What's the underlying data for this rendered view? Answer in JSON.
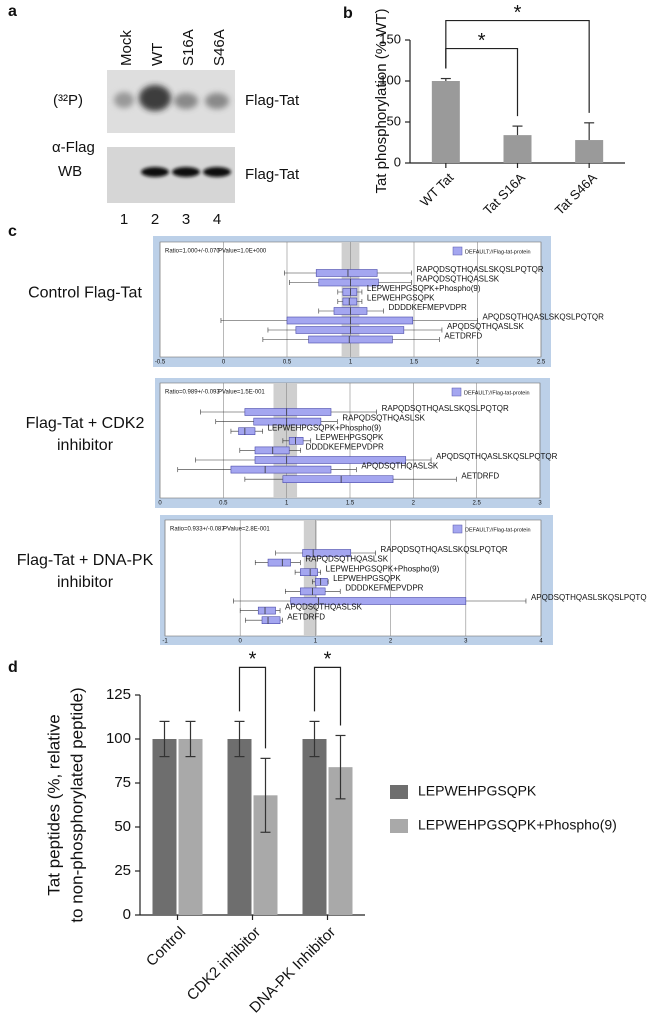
{
  "panel_labels": [
    "a",
    "b",
    "c",
    "d"
  ],
  "blot": {
    "lanes": [
      "Mock",
      "WT",
      "S16A",
      "S46A"
    ],
    "lane_numbers": [
      "1",
      "2",
      "3",
      "4"
    ],
    "rows": [
      {
        "label": [
          "(³²P)"
        ],
        "band_label": "Flag-Tat"
      },
      {
        "label": [
          "α-Flag",
          "WB"
        ],
        "band_label": "Flag-Tat"
      }
    ]
  },
  "chart_data": [
    {
      "type": "bar",
      "categories": [
        "WT Tat",
        "Tat S16A",
        "Tat S46A"
      ],
      "values": [
        100,
        34,
        28
      ],
      "errors": [
        3,
        11,
        21
      ],
      "error_bars": "upper",
      "color": "#9a9a9a",
      "ylabel": "Tat phosphorylation (% WT)",
      "ylim": [
        0,
        150
      ],
      "yticks": [
        0,
        50,
        100,
        150
      ],
      "brackets": [
        {
          "text": "*",
          "between": [
            0,
            2
          ]
        },
        {
          "text": "*",
          "between": [
            0,
            1
          ]
        }
      ]
    },
    {
      "type": "box",
      "title": [
        "Control Flag-Tat"
      ],
      "ratio_label": "Ratio=1.000+/-0.070",
      "ratio": 1.0,
      "ratio_error": 0.07,
      "pvalue_label": "PValue=1.0E+000",
      "legend": "DEFAULT://Flag-tat-protein",
      "color": "#a4a6f0",
      "categories": [
        "RAPQDSQTHQASLSKQSLPQTQR",
        "RAPQDSQTHQASLSK",
        "LEPWEHPGSQPK+Phospho(9)",
        "LEPWEHPGSQPK",
        "DDDDKEFMEPVDPR",
        "APQDSQTHQASLSKQSLPQTQR",
        "APQDSQTHQASLSK",
        "AETDRFD"
      ],
      "boxes": [
        {
          "low": 0.48,
          "q1": 0.73,
          "median": 0.98,
          "q3": 1.21,
          "high": 1.48
        },
        {
          "low": 0.52,
          "q1": 0.75,
          "median": 1.0,
          "q3": 1.22,
          "high": 1.48
        },
        {
          "low": 0.9,
          "q1": 0.94,
          "median": 1.0,
          "q3": 1.05,
          "high": 1.09
        },
        {
          "low": 0.9,
          "q1": 0.94,
          "median": 0.99,
          "q3": 1.05,
          "high": 1.09
        },
        {
          "low": 0.75,
          "q1": 0.87,
          "median": 1.0,
          "q3": 1.13,
          "high": 1.26
        },
        {
          "low": -0.02,
          "q1": 0.5,
          "median": 1.0,
          "q3": 1.49,
          "high": 2.0
        },
        {
          "low": 0.35,
          "q1": 0.57,
          "median": 1.0,
          "q3": 1.42,
          "high": 1.72
        },
        {
          "low": 0.31,
          "q1": 0.67,
          "median": 0.99,
          "q3": 1.33,
          "high": 1.7
        }
      ],
      "xlim": [
        -0.5,
        2.5
      ],
      "xticks": [
        -0.5,
        0,
        0.5,
        1,
        1.5,
        2,
        2.5
      ]
    },
    {
      "type": "box",
      "title": [
        "Flag-Tat + CDK2",
        "inhibitor"
      ],
      "ratio_label": "Ratio=0.989+/-0.093",
      "ratio": 0.989,
      "ratio_error": 0.093,
      "pvalue_label": "PValue=1.5E-001",
      "legend": "DEFAULT://Flag-tat-protein",
      "color": "#a4a6f0",
      "categories": [
        "RAPQDSQTHQASLSKQSLPQTQR",
        "RAPQDSQTHQASLSK",
        "LEPWEHPGSQPK+Phospho(9)",
        "LEPWEHPGSQPK",
        "DDDDKEFMEPVDPR",
        "APQDSQTHQASLSKQSLPQTQR",
        "APQDSQTHQASLSK",
        "AETDRFD"
      ],
      "boxes": [
        {
          "low": 0.32,
          "q1": 0.67,
          "median": 1.0,
          "q3": 1.35,
          "high": 1.71
        },
        {
          "low": 0.44,
          "q1": 0.74,
          "median": 1.0,
          "q3": 1.27,
          "high": 1.4
        },
        {
          "low": 0.56,
          "q1": 0.62,
          "median": 0.67,
          "q3": 0.75,
          "high": 0.81
        },
        {
          "low": 0.97,
          "q1": 1.02,
          "median": 1.07,
          "q3": 1.13,
          "high": 1.19
        },
        {
          "low": 0.63,
          "q1": 0.75,
          "median": 0.89,
          "q3": 1.02,
          "high": 1.11
        },
        {
          "low": 0.28,
          "q1": 0.75,
          "median": 1.0,
          "q3": 1.94,
          "high": 2.14
        },
        {
          "low": 0.14,
          "q1": 0.56,
          "median": 0.83,
          "q3": 1.35,
          "high": 1.55
        },
        {
          "low": 0.67,
          "q1": 0.97,
          "median": 1.43,
          "q3": 1.84,
          "high": 2.34
        }
      ],
      "xlim": [
        0,
        3
      ],
      "xticks": [
        0,
        0.5,
        1,
        1.5,
        2,
        2.5,
        3
      ]
    },
    {
      "type": "box",
      "title": [
        "Flag-Tat + DNA-PK",
        "inhibitor"
      ],
      "ratio_label": "Ratio=0.933+/-0.087",
      "ratio": 0.933,
      "ratio_error": 0.087,
      "pvalue_label": "PValue=2.8E-001",
      "legend": "DEFAULT://Flag-tat-protein",
      "color": "#a4a6f0",
      "categories": [
        "RAPQDSQTHQASLSKQSLPQTQR",
        "RAPQDSQTHQASLSK",
        "LEPWEHPGSQPK+Phospho(9)",
        "LEPWEHPGSQPK",
        "DDDDKEFMEPVDPR",
        "APQDSQTHQASLSKQSLPQTQR",
        "APQDSQTHQASLSK",
        "AETDRFD"
      ],
      "boxes": [
        {
          "low": 0.47,
          "q1": 0.83,
          "median": 0.97,
          "q3": 1.47,
          "high": 1.8
        },
        {
          "low": 0.2,
          "q1": 0.37,
          "median": 0.56,
          "q3": 0.67,
          "high": 0.8
        },
        {
          "low": 0.73,
          "q1": 0.8,
          "median": 0.93,
          "q3": 1.03,
          "high": 1.07
        },
        {
          "low": 0.96,
          "q1": 1.0,
          "median": 1.07,
          "q3": 1.16,
          "high": 1.17
        },
        {
          "low": 0.6,
          "q1": 0.8,
          "median": 0.96,
          "q3": 1.13,
          "high": 1.33
        },
        {
          "low": -0.09,
          "q1": 0.67,
          "median": 1.04,
          "q3": 3.0,
          "high": 3.8
        },
        {
          "low": 0.0,
          "q1": 0.24,
          "median": 0.33,
          "q3": 0.47,
          "high": 0.53
        },
        {
          "low": 0.07,
          "q1": 0.29,
          "median": 0.37,
          "q3": 0.53,
          "high": 0.56
        }
      ],
      "xlim": [
        -1,
        4
      ],
      "xticks": [
        -1,
        0,
        1,
        2,
        3,
        4
      ]
    },
    {
      "type": "bar",
      "ylabel": [
        "Tat peptides (%, relative",
        "to non-phosphorylated peptide)"
      ],
      "categories": [
        "Control",
        "CDK2 inhibitor",
        "DNA-PK Inhibitor"
      ],
      "series": [
        {
          "name": "LEPWEHPGSQPK",
          "color": "#6e6e6e",
          "values": [
            100,
            100,
            100
          ],
          "errors": [
            10,
            10,
            10
          ]
        },
        {
          "name": "LEPWEHPGSQPK+Phospho(9)",
          "color": "#a9a9a9",
          "values": [
            100,
            68,
            84
          ],
          "errors": [
            10,
            21,
            18
          ]
        }
      ],
      "error_bars": "both",
      "ylim": [
        0,
        125
      ],
      "yticks": [
        0,
        25,
        50,
        75,
        100,
        125
      ],
      "brackets": [
        {
          "text": "*",
          "category": 1
        },
        {
          "text": "*",
          "category": 2
        }
      ]
    }
  ]
}
